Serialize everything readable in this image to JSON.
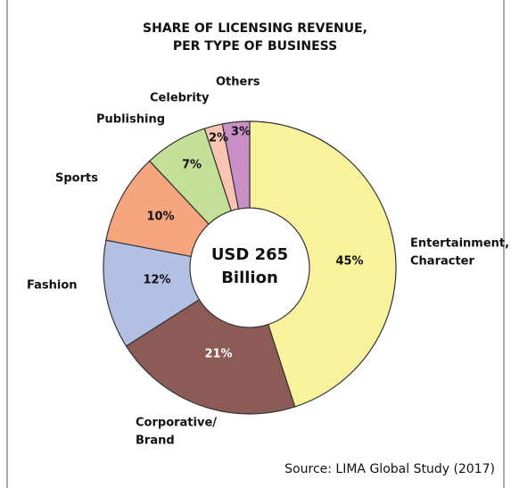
{
  "chart_data": {
    "type": "donut",
    "title": [
      "SHARE OF LICENSING REVENUE,",
      "PER TYPE OF BUSINESS"
    ],
    "categories": [
      [
        "Entertainment,",
        "Character"
      ],
      [
        "Corporative/",
        "Brand"
      ],
      [
        "Fashion"
      ],
      [
        "Sports"
      ],
      [
        "Publishing"
      ],
      [
        "Celebrity"
      ],
      [
        "Others"
      ]
    ],
    "values": [
      45,
      21,
      12,
      10,
      7,
      2,
      3
    ],
    "value_labels": [
      "45%",
      "21%",
      "12%",
      "10%",
      "7%",
      "2%",
      "3%"
    ],
    "colors": [
      "#f8f29c",
      "#8c5b57",
      "#b4bfe4",
      "#f5a67f",
      "#c4df97",
      "#f9c4b1",
      "#ca8fc7"
    ],
    "center_label": [
      "USD 265",
      "Billion"
    ],
    "source": "Source: LIMA Global Study (2017)"
  }
}
